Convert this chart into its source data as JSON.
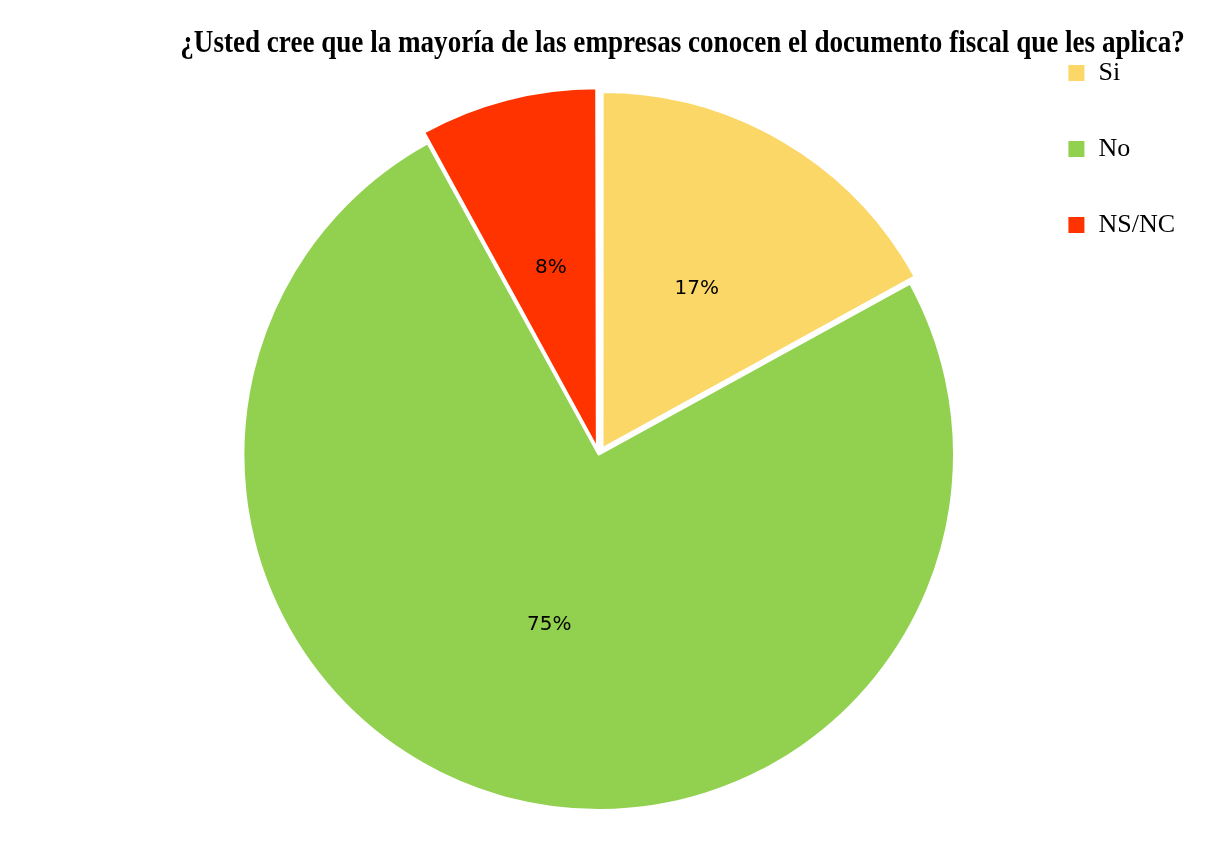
{
  "chart_data": {
    "type": "pie",
    "title": "¿Usted cree que la mayoría de las empresas conocen el documento fiscal que les aplica?",
    "categories": [
      "Si",
      "No",
      "NS/NC"
    ],
    "values": [
      17,
      75,
      8
    ],
    "value_labels": [
      "17%",
      "75%",
      "8%"
    ],
    "colors": [
      "#fad766",
      "#92d050",
      "#ff3300"
    ],
    "legend": "top right"
  }
}
